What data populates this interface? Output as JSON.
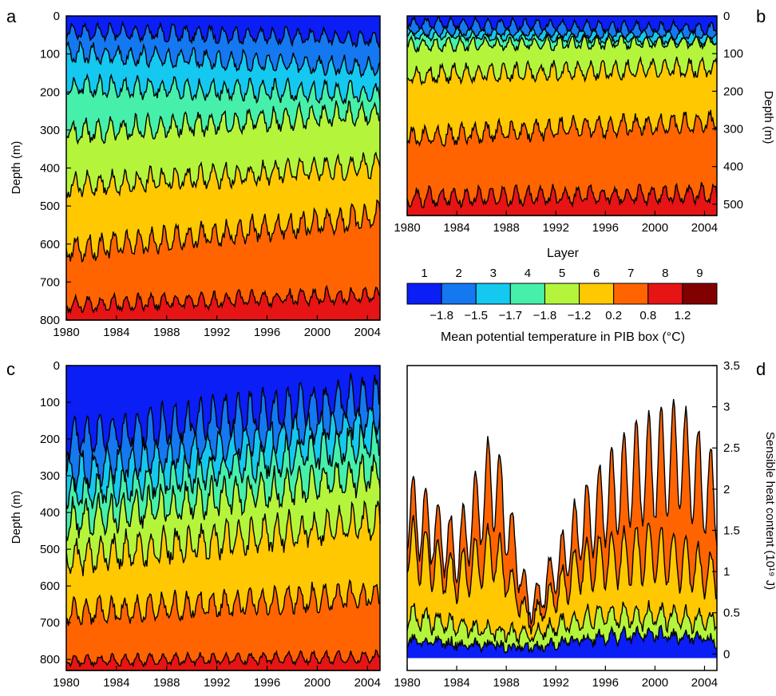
{
  "panel_letters": [
    "a",
    "b",
    "c",
    "d"
  ],
  "x_ticks": [
    "1980",
    "1984",
    "1988",
    "1992",
    "1996",
    "2000",
    "2004"
  ],
  "depth_label": "Depth (m)",
  "x_label_b": "Layer",
  "colorbar": {
    "layer_numbers": [
      "1",
      "2",
      "3",
      "4",
      "5",
      "6",
      "7",
      "8",
      "9"
    ],
    "temperatures": [
      "−1.8",
      "−1.5",
      "−1.7",
      "−1.8",
      "−1.2",
      "0.2",
      "0.8",
      "1.2"
    ],
    "caption": "Mean potential temperature in PIB box (°C)"
  },
  "layer_colors": [
    "#0a1ef5",
    "#1478f0",
    "#14c8f0",
    "#46f0aa",
    "#b4f53c",
    "#ffc800",
    "#ff6400",
    "#e61414",
    "#820000"
  ],
  "ylabel_d": "Sensible heat content (10¹⁹ J)",
  "chart_data": [
    {
      "panel": "a",
      "type": "area",
      "ylabel": "Depth (m)",
      "ylim": [
        0,
        800
      ],
      "y_ticks": [
        0,
        100,
        200,
        300,
        400,
        500,
        600,
        700,
        800
      ],
      "y_inverted": true,
      "xlim": [
        1980,
        2005
      ],
      "interface_means": [
        55,
        115,
        205,
        330,
        470,
        640,
        775,
        800
      ],
      "interface_trend": [
        20,
        40,
        20,
        -55,
        -55,
        -90,
        -25,
        0
      ],
      "interface_amplitude": [
        35,
        40,
        45,
        50,
        50,
        55,
        35,
        0
      ]
    },
    {
      "panel": "b",
      "type": "area",
      "ylabel": "Depth (m)",
      "ylim": [
        0,
        530
      ],
      "y_ticks": [
        0,
        100,
        200,
        300,
        400,
        500
      ],
      "y_inverted": true,
      "xlim": [
        1980,
        2005
      ],
      "interface_means": [
        30,
        50,
        60,
        90,
        175,
        340,
        500,
        530
      ],
      "interface_trend": [
        15,
        10,
        15,
        -10,
        -20,
        -40,
        -10,
        0
      ],
      "interface_amplitude": [
        25,
        20,
        20,
        30,
        40,
        45,
        40,
        0
      ]
    },
    {
      "panel": "c",
      "type": "area",
      "ylabel": "Depth (m)",
      "ylim": [
        0,
        830
      ],
      "y_ticks": [
        0,
        100,
        200,
        300,
        400,
        500,
        600,
        700,
        800
      ],
      "y_inverted": true,
      "xlim": [
        1980,
        2005
      ],
      "interface_means": [
        240,
        330,
        390,
        460,
        560,
        700,
        815,
        830
      ],
      "interface_trend": [
        -120,
        -160,
        -150,
        -130,
        -100,
        -50,
        -10,
        0
      ],
      "interface_amplitude": [
        90,
        85,
        85,
        85,
        80,
        60,
        25,
        0
      ]
    },
    {
      "panel": "d",
      "type": "area",
      "ylabel": "Sensible heat content (10¹⁹ J)",
      "ylim": [
        -0.2,
        3.5
      ],
      "y_ticks": [
        0,
        0.5,
        1,
        1.5,
        2,
        2.5,
        3,
        3.5
      ],
      "xlim": [
        1980,
        2005
      ],
      "series": [
        {
          "name": "Layer 1-4",
          "values_note": "",
          "envelope": [
            [
              1980,
              0.2
            ],
            [
              1985,
              0.15
            ],
            [
              1990,
              0.1
            ],
            [
              1995,
              0.25
            ],
            [
              2000,
              0.3
            ],
            [
              2005,
              0.2
            ]
          ]
        },
        {
          "name": "Layer 5",
          "envelope": [
            [
              1980,
              0.6
            ],
            [
              1985,
              0.4
            ],
            [
              1990,
              0.3
            ],
            [
              1995,
              0.6
            ],
            [
              2000,
              0.6
            ],
            [
              2005,
              0.5
            ]
          ]
        },
        {
          "name": "Layer 6",
          "envelope": [
            [
              1980,
              1.7
            ],
            [
              1984,
              1.2
            ],
            [
              1987,
              1.6
            ],
            [
              1990,
              0.5
            ],
            [
              1994,
              1.4
            ],
            [
              2000,
              1.6
            ],
            [
              2005,
              1.2
            ]
          ]
        },
        {
          "name": "Layer 7",
          "envelope": [
            [
              1980,
              2.3
            ],
            [
              1984,
              1.6
            ],
            [
              1987,
              2.8
            ],
            [
              1990,
              0.7
            ],
            [
              1994,
              2.0
            ],
            [
              1998,
              2.8
            ],
            [
              2002,
              3.1
            ],
            [
              2005,
              2.4
            ]
          ]
        }
      ]
    }
  ]
}
